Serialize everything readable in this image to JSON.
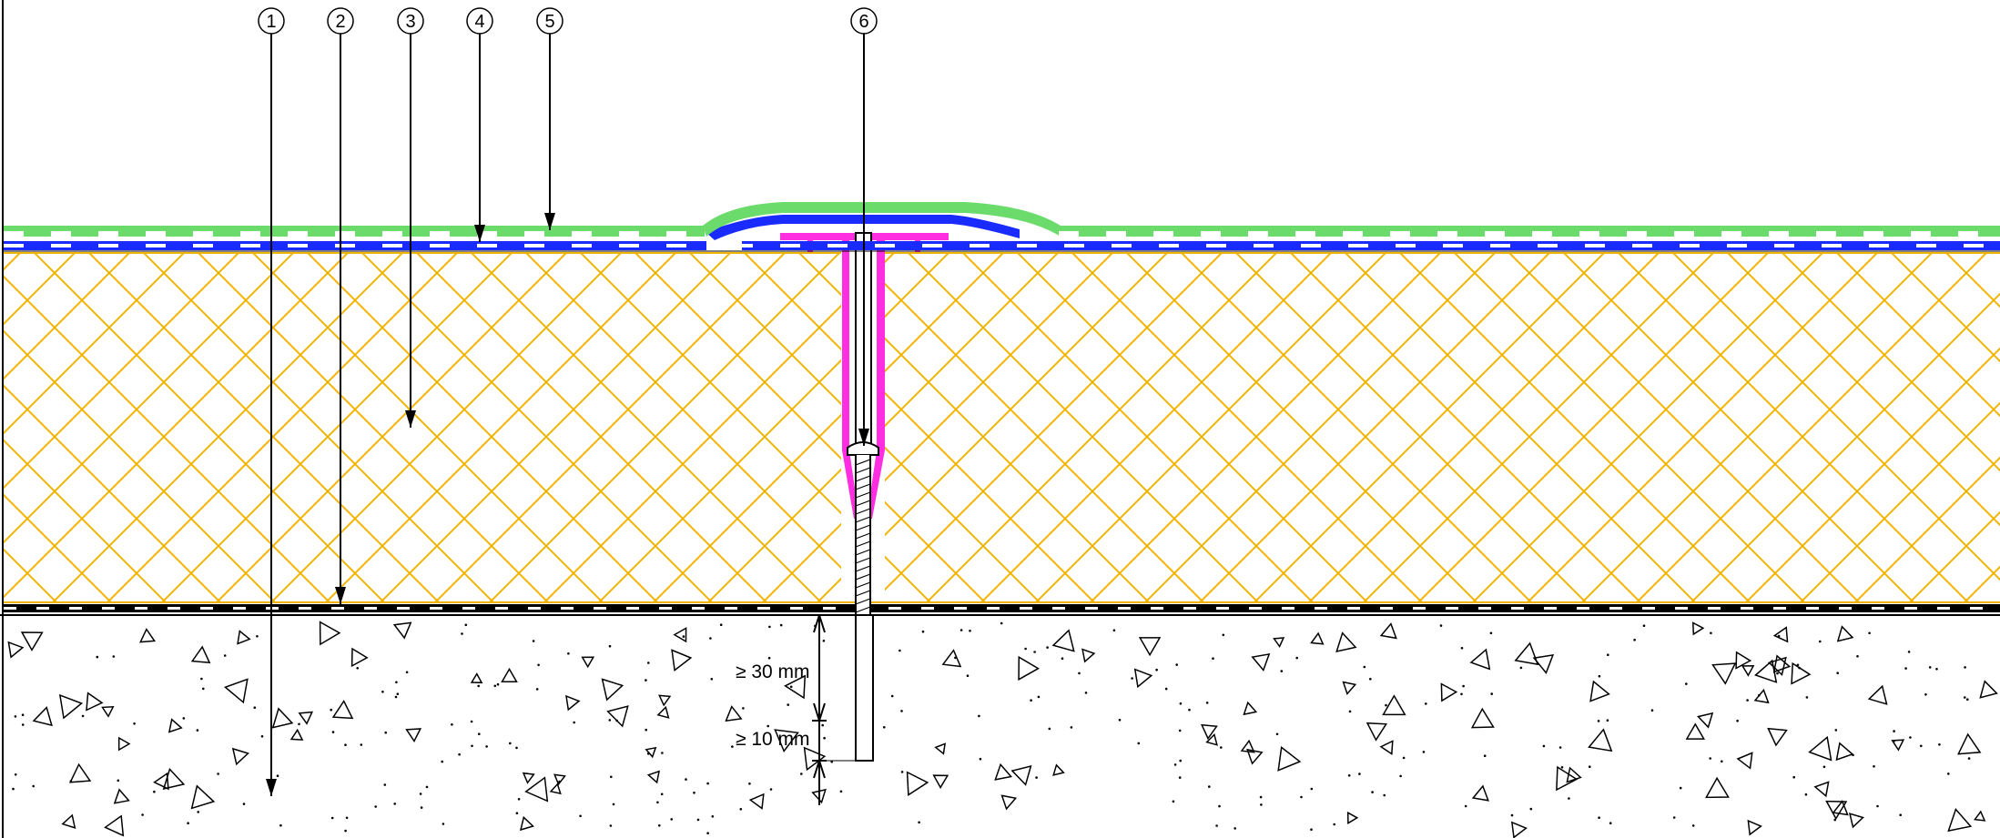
{
  "callouts": [
    {
      "label": "1",
      "target": "concrete-substrate"
    },
    {
      "label": "2",
      "target": "vapour-barrier"
    },
    {
      "label": "3",
      "target": "insulation"
    },
    {
      "label": "4",
      "target": "separation-layer"
    },
    {
      "label": "5",
      "target": "waterproofing-membrane"
    },
    {
      "label": "6",
      "target": "fastener"
    }
  ],
  "dimensions": {
    "embed_depth": "≥ 30 mm",
    "tip_projection": "≥ 10  mm"
  },
  "colors": {
    "membrane": "#6bdc6b",
    "separation": "#1a2bff",
    "insulation_hatch": "#f0b400",
    "fastener_plate": "#ff2ee0",
    "linework": "#000000",
    "strip_white": "#ffffff"
  }
}
